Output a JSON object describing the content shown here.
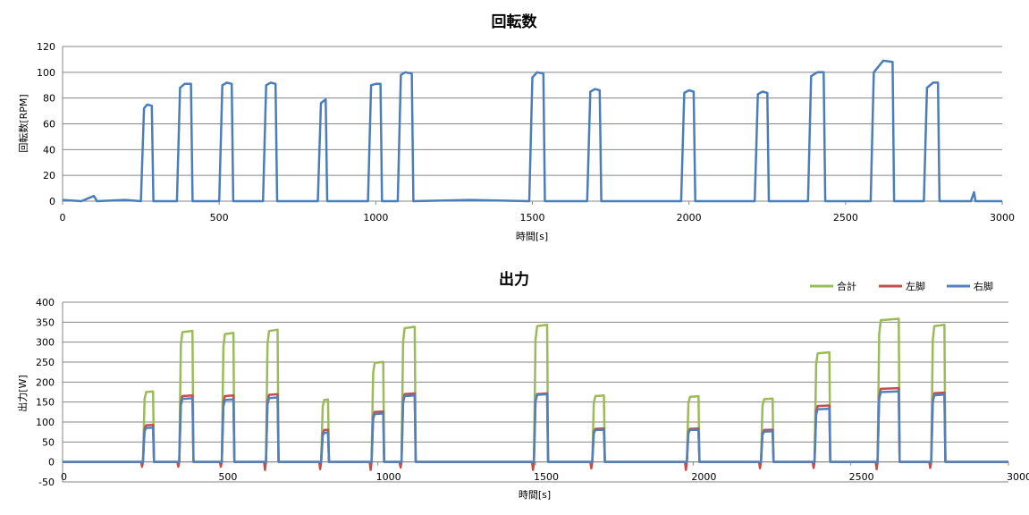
{
  "chart_data": [
    {
      "type": "line",
      "title": "回転数",
      "xlabel": "時間[s]",
      "ylabel": "回転数[RPM]",
      "xlim": [
        0,
        3000
      ],
      "ylim": [
        0,
        120
      ],
      "x_ticks": [
        0,
        500,
        1000,
        1500,
        2000,
        2500,
        3000
      ],
      "y_ticks": [
        0,
        20,
        40,
        60,
        80,
        100,
        120
      ],
      "grid": "horizontal",
      "legend": "none",
      "colors": {
        "series": "#4a7ebb",
        "grid": "#868686"
      },
      "series": [
        {
          "points": [
            [
              0,
              1
            ],
            [
              60,
              0
            ],
            [
              100,
              4
            ],
            [
              110,
              0
            ],
            [
              200,
              1
            ],
            [
              250,
              0
            ],
            [
              260,
              72
            ],
            [
              270,
              75
            ],
            [
              285,
              74
            ],
            [
              290,
              0
            ],
            [
              365,
              0
            ],
            [
              375,
              88
            ],
            [
              390,
              91
            ],
            [
              410,
              91
            ],
            [
              415,
              0
            ],
            [
              500,
              0
            ],
            [
              510,
              90
            ],
            [
              525,
              92
            ],
            [
              540,
              91
            ],
            [
              545,
              0
            ],
            [
              640,
              0
            ],
            [
              650,
              90
            ],
            [
              665,
              92
            ],
            [
              680,
              91
            ],
            [
              685,
              0
            ],
            [
              815,
              0
            ],
            [
              825,
              76
            ],
            [
              840,
              79
            ],
            [
              845,
              0
            ],
            [
              975,
              0
            ],
            [
              985,
              90
            ],
            [
              1000,
              91
            ],
            [
              1015,
              91
            ],
            [
              1020,
              0
            ],
            [
              1070,
              0
            ],
            [
              1080,
              98
            ],
            [
              1095,
              100
            ],
            [
              1115,
              99
            ],
            [
              1120,
              0
            ],
            [
              1300,
              1
            ],
            [
              1490,
              0
            ],
            [
              1500,
              96
            ],
            [
              1515,
              100
            ],
            [
              1535,
              99
            ],
            [
              1540,
              0
            ],
            [
              1675,
              0
            ],
            [
              1685,
              85
            ],
            [
              1700,
              87
            ],
            [
              1715,
              86
            ],
            [
              1720,
              0
            ],
            [
              1975,
              0
            ],
            [
              1985,
              84
            ],
            [
              2000,
              86
            ],
            [
              2015,
              85
            ],
            [
              2020,
              0
            ],
            [
              2210,
              0
            ],
            [
              2220,
              83
            ],
            [
              2235,
              85
            ],
            [
              2250,
              84
            ],
            [
              2255,
              0
            ],
            [
              2380,
              0
            ],
            [
              2390,
              97
            ],
            [
              2410,
              100
            ],
            [
              2430,
              100
            ],
            [
              2435,
              0
            ],
            [
              2580,
              0
            ],
            [
              2590,
              100
            ],
            [
              2620,
              109
            ],
            [
              2650,
              108
            ],
            [
              2655,
              0
            ],
            [
              2750,
              0
            ],
            [
              2760,
              88
            ],
            [
              2780,
              92
            ],
            [
              2795,
              92
            ],
            [
              2800,
              0
            ],
            [
              2900,
              0
            ],
            [
              2910,
              7
            ],
            [
              2915,
              0
            ],
            [
              3000,
              0
            ]
          ]
        }
      ]
    },
    {
      "type": "line",
      "title": "出力",
      "xlabel": "時間[s]",
      "ylabel": "出力[W]",
      "xlim": [
        0,
        3000
      ],
      "ylim": [
        -50,
        400
      ],
      "x_ticks": [
        0,
        500,
        1000,
        1500,
        2000,
        2500,
        3000
      ],
      "y_ticks": [
        -50,
        0,
        50,
        100,
        150,
        200,
        250,
        300,
        350,
        400
      ],
      "grid": "horizontal",
      "legend": "top-right",
      "colors": {
        "grid": "#868686"
      },
      "intervals_note_none": "",
      "series": [
        {
          "name": "合計",
          "color": "#9bbb59",
          "intervals": [
            [
              255,
              290,
              175
            ],
            [
              370,
              415,
              325
            ],
            [
              505,
              545,
              320
            ],
            [
              645,
              685,
              328
            ],
            [
              820,
              845,
              155
            ],
            [
              980,
              1020,
              248
            ],
            [
              1075,
              1120,
              335
            ],
            [
              1495,
              1540,
              340
            ],
            [
              1680,
              1720,
              165
            ],
            [
              1980,
              2020,
              163
            ],
            [
              2215,
              2255,
              157
            ],
            [
              2385,
              2435,
              272
            ],
            [
              2585,
              2655,
              355
            ],
            [
              2755,
              2800,
              340
            ]
          ]
        },
        {
          "name": "左脚",
          "color": "#c0504d",
          "intervals": [
            [
              255,
              290,
              92
            ],
            [
              370,
              415,
              165
            ],
            [
              505,
              545,
              165
            ],
            [
              645,
              685,
              168
            ],
            [
              820,
              845,
              80
            ],
            [
              980,
              1020,
              125
            ],
            [
              1075,
              1120,
              170
            ],
            [
              1495,
              1540,
              170
            ],
            [
              1680,
              1720,
              83
            ],
            [
              1980,
              2020,
              83
            ],
            [
              2215,
              2255,
              80
            ],
            [
              2385,
              2435,
              140
            ],
            [
              2585,
              2655,
              183
            ],
            [
              2755,
              2800,
              172
            ]
          ],
          "dips": [
            [
              255,
              -12
            ],
            [
              370,
              -12
            ],
            [
              505,
              -12
            ],
            [
              645,
              -20
            ],
            [
              820,
              -18
            ],
            [
              980,
              -20
            ],
            [
              1075,
              -14
            ],
            [
              1495,
              -20
            ],
            [
              1680,
              -16
            ],
            [
              1980,
              -20
            ],
            [
              2215,
              -16
            ],
            [
              2385,
              -15
            ],
            [
              2585,
              -18
            ],
            [
              2755,
              -15
            ]
          ]
        },
        {
          "name": "右脚",
          "color": "#4f81bd",
          "intervals": [
            [
              255,
              290,
              85
            ],
            [
              370,
              415,
              158
            ],
            [
              505,
              545,
              155
            ],
            [
              645,
              685,
              160
            ],
            [
              820,
              845,
              73
            ],
            [
              980,
              1020,
              120
            ],
            [
              1075,
              1120,
              165
            ],
            [
              1495,
              1540,
              168
            ],
            [
              1680,
              1720,
              80
            ],
            [
              1980,
              2020,
              80
            ],
            [
              2215,
              2255,
              76
            ],
            [
              2385,
              2435,
              132
            ],
            [
              2585,
              2655,
              175
            ],
            [
              2755,
              2800,
              167
            ]
          ]
        }
      ]
    }
  ]
}
